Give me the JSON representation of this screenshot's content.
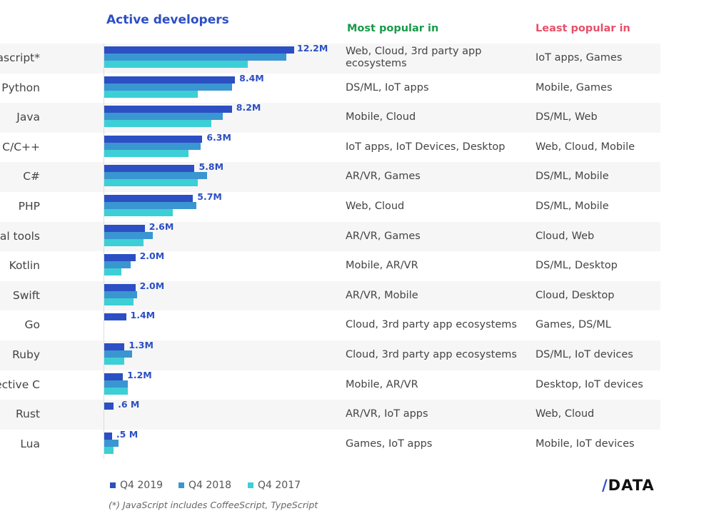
{
  "headers": {
    "active": "Active developers",
    "most": "Most popular in",
    "least": "Least popular in"
  },
  "colors": {
    "q4_2019": "#2c4fc4",
    "q4_2018": "#3a96d0",
    "q4_2017": "#3ccfd6",
    "most": "#1a9a4a",
    "least": "#e8506a"
  },
  "chart_data": {
    "type": "bar",
    "orientation": "horizontal",
    "title": "Active developers",
    "units": "M",
    "legend_position": "bottom",
    "grid": false,
    "xlim": [
      0,
      12.2
    ],
    "categories": [
      "Javascript*",
      "Python",
      "Java",
      "C/C++",
      "C#",
      "PHP",
      "Visual tools",
      "Kotlin",
      "Swift",
      "Go",
      "Ruby",
      "Objective C",
      "Rust",
      "Lua"
    ],
    "series": [
      {
        "name": "Q4 2019",
        "values": [
          12.2,
          8.4,
          8.2,
          6.3,
          5.8,
          5.7,
          2.6,
          2.0,
          2.0,
          1.4,
          1.3,
          1.2,
          0.6,
          0.5
        ]
      },
      {
        "name": "Q4 2018",
        "values": [
          11.7,
          8.2,
          7.6,
          6.2,
          6.6,
          5.9,
          3.1,
          1.7,
          2.1,
          null,
          1.8,
          1.5,
          null,
          0.9
        ]
      },
      {
        "name": "Q4 2017",
        "values": [
          9.2,
          6.0,
          6.9,
          5.4,
          6.0,
          4.4,
          2.5,
          1.1,
          1.9,
          null,
          1.3,
          1.5,
          null,
          0.6
        ]
      }
    ],
    "data_labels": [
      "12.2M",
      "8.4M",
      "8.2M",
      "6.3M",
      "5.8M",
      "5.7M",
      "2.6M",
      "2.0M",
      "2.0M",
      "1.4M",
      "1.3M",
      "1.2M",
      ".6 M",
      ".5 M"
    ]
  },
  "most_popular": [
    "Web, Cloud, 3rd party app ecosystems",
    "DS/ML, IoT apps",
    "Mobile, Cloud",
    "IoT apps, IoT Devices, Desktop",
    "AR/VR, Games",
    "Web, Cloud",
    "AR/VR, Games",
    "Mobile, AR/VR",
    "AR/VR, Mobile",
    "Cloud, 3rd party app ecosystems",
    "Cloud, 3rd party app ecosystems",
    "Mobile, AR/VR",
    "AR/VR, IoT apps",
    "Games, IoT apps"
  ],
  "least_popular": [
    "IoT apps, Games",
    "Mobile, Games",
    "DS/ML, Web",
    "Web, Cloud, Mobile",
    "DS/ML, Mobile",
    "DS/ML, Mobile",
    "Cloud, Web",
    "DS/ML, Desktop",
    "Cloud, Desktop",
    "Games, DS/ML",
    "DS/ML, IoT devices",
    "Desktop, IoT devices",
    "Web, Cloud",
    "Mobile, IoT devices"
  ],
  "legend": [
    "Q4 2019",
    "Q4 2018",
    "Q4 2017"
  ],
  "footnote": "(*) JavaScript includes CoffeeScript, TypeScript",
  "logo": "/DATA"
}
